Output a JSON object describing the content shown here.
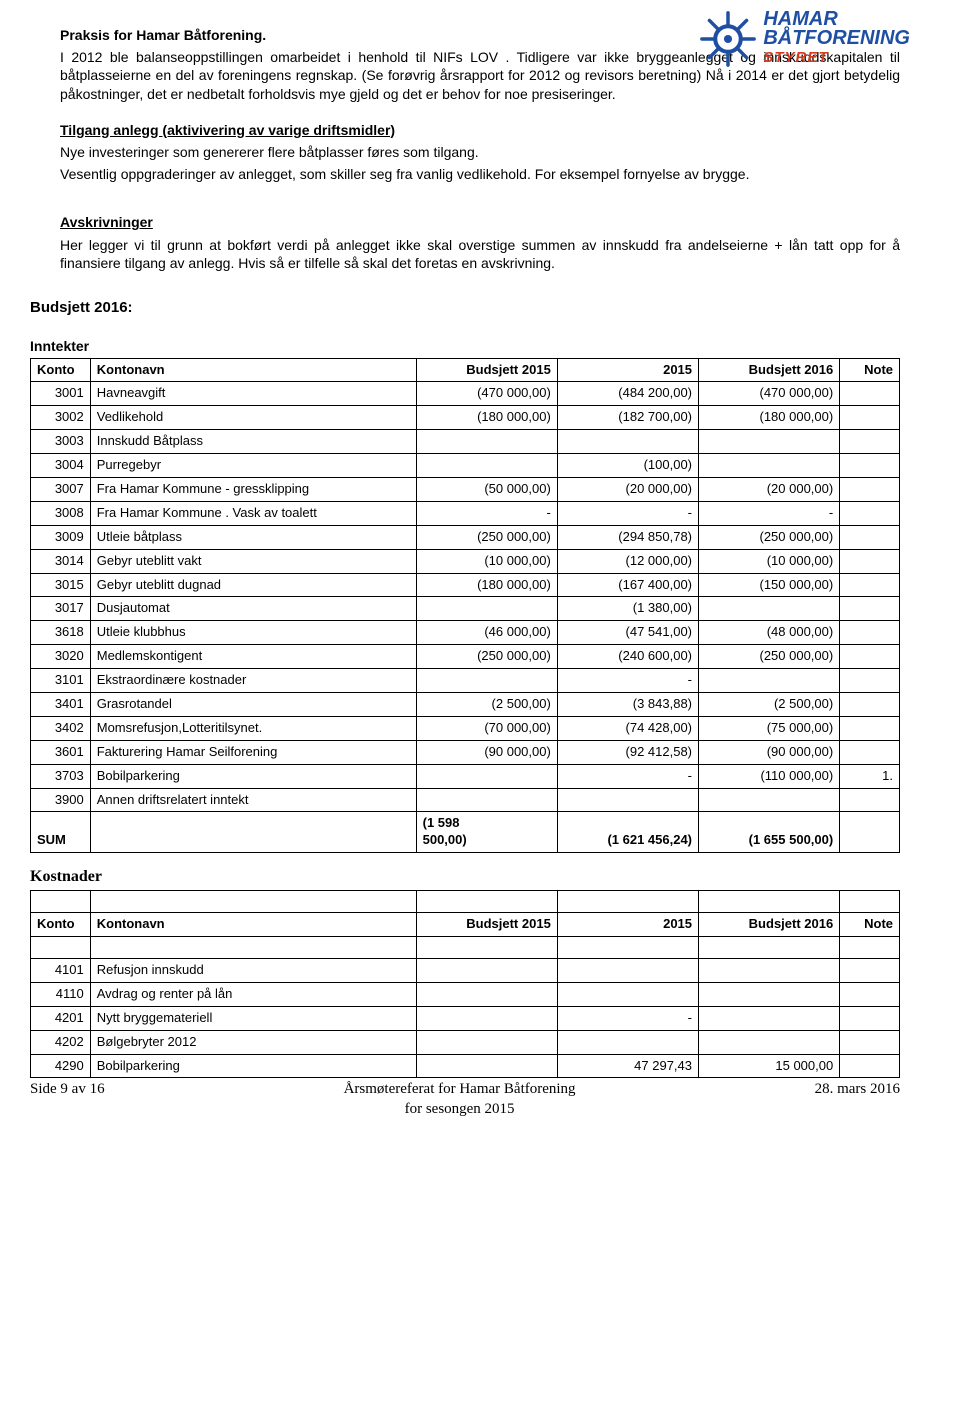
{
  "logo": {
    "line1": "HAMAR",
    "line2": "BÅTFORENING",
    "sub": "STYRET",
    "wheel_color": "#1e4fa3"
  },
  "prose": {
    "h1": "Praksis for Hamar Båtforening.",
    "p1": "I 2012 ble  balanseoppstillingen omarbeidet  i henhold til  NIFs LOV . Tidligere var ikke  bryggeanlegget og innskuddskapitalen til båtplasseierne en del av foreningens regnskap.   (Se forøvrig årsrapport for 2012 og revisors beretning) Nå i 2014 er det gjort betydelig påkostninger, det er nedbetalt forholdsvis mye gjeld og det er behov for  noe presiseringer.",
    "h2": "Tilgang anlegg (aktivivering av varige driftsmidler)",
    "p2": "Nye investeringer som genererer flere båtplasser føres som tilgang.",
    "p3": "Vesentlig oppgraderinger  av anlegget, som  skiller seg fra vanlig vedlikehold.  For eksempel fornyelse av brygge.",
    "h3": "Avskrivninger",
    "p4": "Her legger vi til grunn at  bokført verdi på anlegget ikke skal overstige summen av innskudd fra andelseierne + lån tatt opp for å finansiere tilgang av anlegg. Hvis så er tilfelle  så skal det foretas en avskrivning."
  },
  "budget_heading": "Budsjett 2016:",
  "inntekter": {
    "title": "Inntekter",
    "headers": {
      "konto": "Konto",
      "navn": "Kontonavn",
      "b2015": "Budsjett 2015",
      "y2015": "2015",
      "b2016": "Budsjett 2016",
      "note": "Note"
    },
    "rows": [
      {
        "konto": "3001",
        "navn": "Havneavgift",
        "b2015": "(470 000,00)",
        "y2015": "(484 200,00)",
        "b2016": "(470 000,00)",
        "note": ""
      },
      {
        "konto": "3002",
        "navn": "Vedlikehold",
        "b2015": "(180 000,00)",
        "y2015": "(182 700,00)",
        "b2016": "(180 000,00)",
        "note": ""
      },
      {
        "konto": "3003",
        "navn": "Innskudd Båtplass",
        "b2015": "",
        "y2015": "",
        "b2016": "",
        "note": ""
      },
      {
        "konto": "3004",
        "navn": "Purregebyr",
        "b2015": "",
        "y2015": "(100,00)",
        "b2016": "",
        "note": ""
      },
      {
        "konto": "3007",
        "navn": "Fra Hamar Kommune - gressklipping",
        "b2015": "(50 000,00)",
        "y2015": "(20 000,00)",
        "b2016": "(20 000,00)",
        "note": ""
      },
      {
        "konto": "3008",
        "navn": "Fra Hamar Kommune . Vask av toalett",
        "b2015": "-",
        "y2015": "-",
        "b2016": "-",
        "note": ""
      },
      {
        "konto": "3009",
        "navn": "Utleie båtplass",
        "b2015": "(250 000,00)",
        "y2015": "(294 850,78)",
        "b2016": "(250 000,00)",
        "note": ""
      },
      {
        "konto": "3014",
        "navn": "Gebyr uteblitt vakt",
        "b2015": "(10 000,00)",
        "y2015": "(12 000,00)",
        "b2016": "(10 000,00)",
        "note": ""
      },
      {
        "konto": "3015",
        "navn": "Gebyr uteblitt dugnad",
        "b2015": "(180 000,00)",
        "y2015": "(167 400,00)",
        "b2016": "(150 000,00)",
        "note": ""
      },
      {
        "konto": "3017",
        "navn": "Dusjautomat",
        "b2015": "",
        "y2015": "(1 380,00)",
        "b2016": "",
        "note": ""
      },
      {
        "konto": "3618",
        "navn": "Utleie klubbhus",
        "b2015": "(46 000,00)",
        "y2015": "(47 541,00)",
        "b2016": "(48 000,00)",
        "note": ""
      },
      {
        "konto": "3020",
        "navn": "Medlemskontigent",
        "b2015": "(250 000,00)",
        "y2015": "(240 600,00)",
        "b2016": "(250 000,00)",
        "note": ""
      },
      {
        "konto": "3101",
        "navn": "Ekstraordinære kostnader",
        "b2015": "",
        "y2015": "-",
        "b2016": "",
        "note": ""
      },
      {
        "konto": "3401",
        "navn": "Grasrotandel",
        "b2015": "(2 500,00)",
        "y2015": "(3 843,88)",
        "b2016": "(2 500,00)",
        "note": ""
      },
      {
        "konto": "3402",
        "navn": "Momsrefusjon,Lotteritilsynet.",
        "b2015": "(70 000,00)",
        "y2015": "(74 428,00)",
        "b2016": "(75 000,00)",
        "note": ""
      },
      {
        "konto": "3601",
        "navn": "Fakturering Hamar Seilforening",
        "b2015": "(90 000,00)",
        "y2015": "(92 412,58)",
        "b2016": "(90 000,00)",
        "note": ""
      },
      {
        "konto": "3703",
        "navn": "Bobilparkering",
        "b2015": "",
        "y2015": "-",
        "b2016": "(110 000,00)",
        "note": "1."
      },
      {
        "konto": "3900",
        "navn": "Annen driftsrelatert inntekt",
        "b2015": "",
        "y2015": "",
        "b2016": "",
        "note": ""
      }
    ],
    "sum": {
      "label": "SUM",
      "b2015a": "(1 598",
      "b2015b": "500,00)",
      "y2015": "(1 621 456,24)",
      "b2016": "(1 655 500,00)"
    }
  },
  "kostnader": {
    "title": "Kostnader",
    "headers": {
      "konto": "Konto",
      "navn": "Kontonavn",
      "b2015": "Budsjett 2015",
      "y2015": "2015",
      "b2016": "Budsjett 2016",
      "note": "Note"
    },
    "rows": [
      {
        "konto": "4101",
        "navn": "Refusjon innskudd",
        "b2015": "",
        "y2015": "",
        "b2016": "",
        "note": ""
      },
      {
        "konto": "4110",
        "navn": "Avdrag og renter på lån",
        "b2015": "",
        "y2015": "",
        "b2016": "",
        "note": ""
      },
      {
        "konto": "4201",
        "navn": "Nytt bryggemateriell",
        "b2015": "",
        "y2015": "-",
        "b2016": "",
        "note": ""
      },
      {
        "konto": "4202",
        "navn": "Bølgebryter 2012",
        "b2015": "",
        "y2015": "",
        "b2016": "",
        "note": ""
      },
      {
        "konto": "4290",
        "navn": "Bobilparkering",
        "b2015": "",
        "y2015": "47 297,43",
        "b2016": "15 000,00",
        "note": ""
      }
    ]
  },
  "footer": {
    "left": "Side 9 av 16",
    "mid1": "Årsmøtereferat for Hamar Båtforening",
    "mid2": "for sesongen 2015",
    "right": "28. mars 2016"
  }
}
